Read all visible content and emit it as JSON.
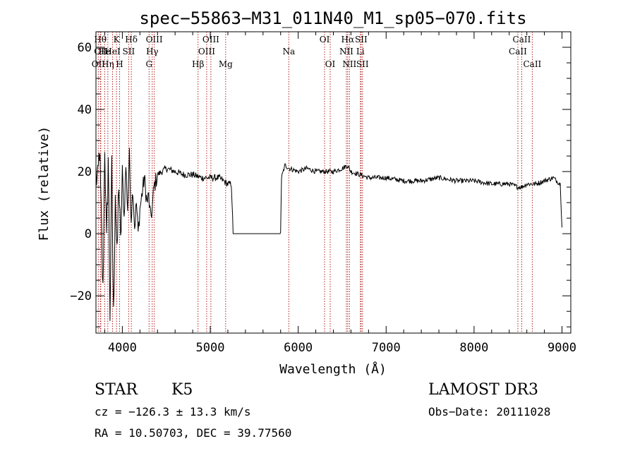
{
  "chart_data": {
    "type": "line",
    "title": "spec−55863−M31_011N40_M1_sp05−070.fits",
    "xlabel": "Wavelength (Å)",
    "ylabel": "Flux (relative)",
    "xlim": [
      3700,
      9100
    ],
    "ylim": [
      -32,
      65
    ],
    "xticks": [
      4000,
      5000,
      6000,
      7000,
      8000,
      9000
    ],
    "xtick_labels": [
      "4000",
      "5000",
      "6000",
      "7000",
      "8000",
      "9000"
    ],
    "yticks": [
      -20,
      0,
      20,
      40,
      60
    ],
    "ytick_labels": [
      "−20",
      "0",
      "20",
      "40",
      "60"
    ],
    "spectrum": {
      "anchors": [
        [
          3700,
          20
        ],
        [
          3720,
          15
        ],
        [
          3740,
          28
        ],
        [
          3760,
          5
        ],
        [
          3780,
          -20
        ],
        [
          3800,
          30
        ],
        [
          3820,
          -5
        ],
        [
          3840,
          25
        ],
        [
          3860,
          -25
        ],
        [
          3880,
          20
        ],
        [
          3900,
          -28
        ],
        [
          3920,
          15
        ],
        [
          3940,
          -10
        ],
        [
          3960,
          18
        ],
        [
          3980,
          -5
        ],
        [
          4000,
          20
        ],
        [
          4020,
          5
        ],
        [
          4040,
          22
        ],
        [
          4060,
          8
        ],
        [
          4080,
          25
        ],
        [
          4100,
          5
        ],
        [
          4120,
          15
        ],
        [
          4140,
          2
        ],
        [
          4160,
          10
        ],
        [
          4180,
          0
        ],
        [
          4200,
          8
        ],
        [
          4220,
          12
        ],
        [
          4250,
          18
        ],
        [
          4280,
          10
        ],
        [
          4300,
          12
        ],
        [
          4320,
          5
        ],
        [
          4340,
          8
        ],
        [
          4360,
          15
        ],
        [
          4380,
          17
        ],
        [
          4400,
          19
        ],
        [
          4450,
          20
        ],
        [
          4500,
          21
        ],
        [
          4600,
          20
        ],
        [
          4700,
          19
        ],
        [
          4800,
          19
        ],
        [
          4900,
          18
        ],
        [
          5000,
          18
        ],
        [
          5100,
          18
        ],
        [
          5150,
          17
        ],
        [
          5200,
          16
        ],
        [
          5240,
          16
        ],
        [
          5260,
          0
        ],
        [
          5800,
          0
        ],
        [
          5810,
          18
        ],
        [
          5850,
          22
        ],
        [
          5900,
          21
        ],
        [
          6000,
          20
        ],
        [
          6100,
          21
        ],
        [
          6200,
          20
        ],
        [
          6300,
          20
        ],
        [
          6400,
          20
        ],
        [
          6500,
          21
        ],
        [
          6560,
          22
        ],
        [
          6600,
          20
        ],
        [
          6700,
          19
        ],
        [
          6800,
          18
        ],
        [
          7000,
          18
        ],
        [
          7200,
          17
        ],
        [
          7400,
          17
        ],
        [
          7600,
          18
        ],
        [
          7800,
          17
        ],
        [
          8000,
          17
        ],
        [
          8200,
          16
        ],
        [
          8400,
          16
        ],
        [
          8500,
          15
        ],
        [
          8540,
          15
        ],
        [
          8600,
          16
        ],
        [
          8700,
          16
        ],
        [
          8800,
          17
        ],
        [
          8900,
          18
        ],
        [
          8980,
          16
        ],
        [
          9000,
          2
        ]
      ]
    },
    "line_markers": [
      {
        "x": 3727,
        "row": 3,
        "label": "OII"
      },
      {
        "x": 3750,
        "row": 1,
        "label": "Hθ"
      },
      {
        "x": 3755,
        "row": 2,
        "label": "OII"
      },
      {
        "x": 3800,
        "row": 2,
        "label": "He"
      },
      {
        "x": 3835,
        "row": 3,
        "label": "Hη"
      },
      {
        "x": 3889,
        "row": 2,
        "label": "HeI"
      },
      {
        "x": 3934,
        "row": 1,
        "label": "K"
      },
      {
        "x": 3969,
        "row": 3,
        "label": "H"
      },
      {
        "x": 4072,
        "row": 2,
        "label": "SII"
      },
      {
        "x": 4102,
        "row": 1,
        "label": "Hδ"
      },
      {
        "x": 4304,
        "row": 3,
        "label": "G"
      },
      {
        "x": 4340,
        "row": 2,
        "label": "Hγ"
      },
      {
        "x": 4363,
        "row": 1,
        "label": "OIII"
      },
      {
        "x": 4861,
        "row": 3,
        "label": "Hβ"
      },
      {
        "x": 4959,
        "row": 2,
        "label": "OIII"
      },
      {
        "x": 5007,
        "row": 1,
        "label": "OIII"
      },
      {
        "x": 5175,
        "row": 3,
        "label": "Mg"
      },
      {
        "x": 5893,
        "row": 2,
        "label": "Na"
      },
      {
        "x": 6300,
        "row": 1,
        "label": "OI"
      },
      {
        "x": 6364,
        "row": 3,
        "label": "OI"
      },
      {
        "x": 6548,
        "row": 2,
        "label": "NII"
      },
      {
        "x": 6563,
        "row": 1,
        "label": "Hα"
      },
      {
        "x": 6583,
        "row": 3,
        "label": "NII"
      },
      {
        "x": 6707,
        "row": 2,
        "label": "Li"
      },
      {
        "x": 6716,
        "row": 1,
        "label": "SII"
      },
      {
        "x": 6731,
        "row": 3,
        "label": "SII"
      },
      {
        "x": 8498,
        "row": 2,
        "label": "CaII"
      },
      {
        "x": 8542,
        "row": 1,
        "label": "CaII"
      },
      {
        "x": 8662,
        "row": 3,
        "label": "CaII"
      }
    ]
  },
  "info": {
    "class": "STAR",
    "subclass": "K5",
    "survey": "LAMOST DR3",
    "cz": "cz = −126.3 ± 13.3 km/s",
    "obs_date": "Obs−Date: 20111028",
    "coords": "RA =  10.50703, DEC =  39.77560"
  },
  "colors": {
    "marker": "#b22222",
    "spectrum": "#000000"
  }
}
